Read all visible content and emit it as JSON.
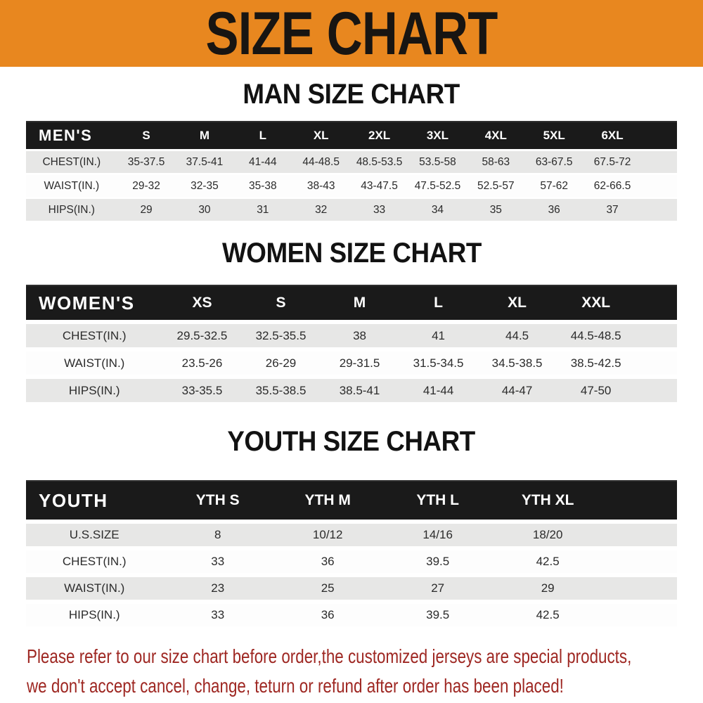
{
  "banner": {
    "title": "SIZE CHART"
  },
  "colors": {
    "banner_bg": "#E8871F",
    "table_header_bg": "#1A1A1A",
    "row_alt_gray": "#E7E7E6",
    "footer_red": "#9E2722"
  },
  "sections": [
    {
      "heading": "MAN SIZE CHART",
      "table_label": "MEN'S",
      "columns": [
        "S",
        "M",
        "L",
        "XL",
        "2XL",
        "3XL",
        "4XL",
        "5XL",
        "6XL"
      ],
      "rows": [
        {
          "label": "CHEST(IN.)",
          "values": [
            "35-37.5",
            "37.5-41",
            "41-44",
            "44-48.5",
            "48.5-53.5",
            "53.5-58",
            "58-63",
            "63-67.5",
            "67.5-72"
          ]
        },
        {
          "label": "WAIST(IN.)",
          "values": [
            "29-32",
            "32-35",
            "35-38",
            "38-43",
            "43-47.5",
            "47.5-52.5",
            "52.5-57",
            "57-62",
            "62-66.5"
          ]
        },
        {
          "label": "HIPS(IN.)",
          "values": [
            "29",
            "30",
            "31",
            "32",
            "33",
            "34",
            "35",
            "36",
            "37"
          ]
        }
      ]
    },
    {
      "heading": "WOMEN SIZE CHART",
      "table_label": "WOMEN'S",
      "columns": [
        "XS",
        "S",
        "M",
        "L",
        "XL",
        "XXL"
      ],
      "rows": [
        {
          "label": "CHEST(IN.)",
          "values": [
            "29.5-32.5",
            "32.5-35.5",
            "38",
            "41",
            "44.5",
            "44.5-48.5"
          ]
        },
        {
          "label": "WAIST(IN.)",
          "values": [
            "23.5-26",
            "26-29",
            "29-31.5",
            "31.5-34.5",
            "34.5-38.5",
            "38.5-42.5"
          ]
        },
        {
          "label": "HIPS(IN.)",
          "values": [
            "33-35.5",
            "35.5-38.5",
            "38.5-41",
            "41-44",
            "44-47",
            "47-50"
          ]
        }
      ]
    },
    {
      "heading": "YOUTH SIZE CHART",
      "table_label": "YOUTH",
      "columns": [
        "YTH S",
        "YTH M",
        "YTH L",
        "YTH XL"
      ],
      "rows": [
        {
          "label": "U.S.SIZE",
          "values": [
            "8",
            "10/12",
            "14/16",
            "18/20"
          ]
        },
        {
          "label": "CHEST(IN.)",
          "values": [
            "33",
            "36",
            "39.5",
            "42.5"
          ]
        },
        {
          "label": "WAIST(IN.)",
          "values": [
            "23",
            "25",
            "27",
            "29"
          ]
        },
        {
          "label": "HIPS(IN.)",
          "values": [
            "33",
            "36",
            "39.5",
            "42.5"
          ]
        }
      ]
    }
  ],
  "footer": {
    "line1": "Please refer to our size chart before order,the customized jerseys are special products,",
    "line2": "we don't accept cancel, change, teturn or refund after order has been placed!"
  }
}
